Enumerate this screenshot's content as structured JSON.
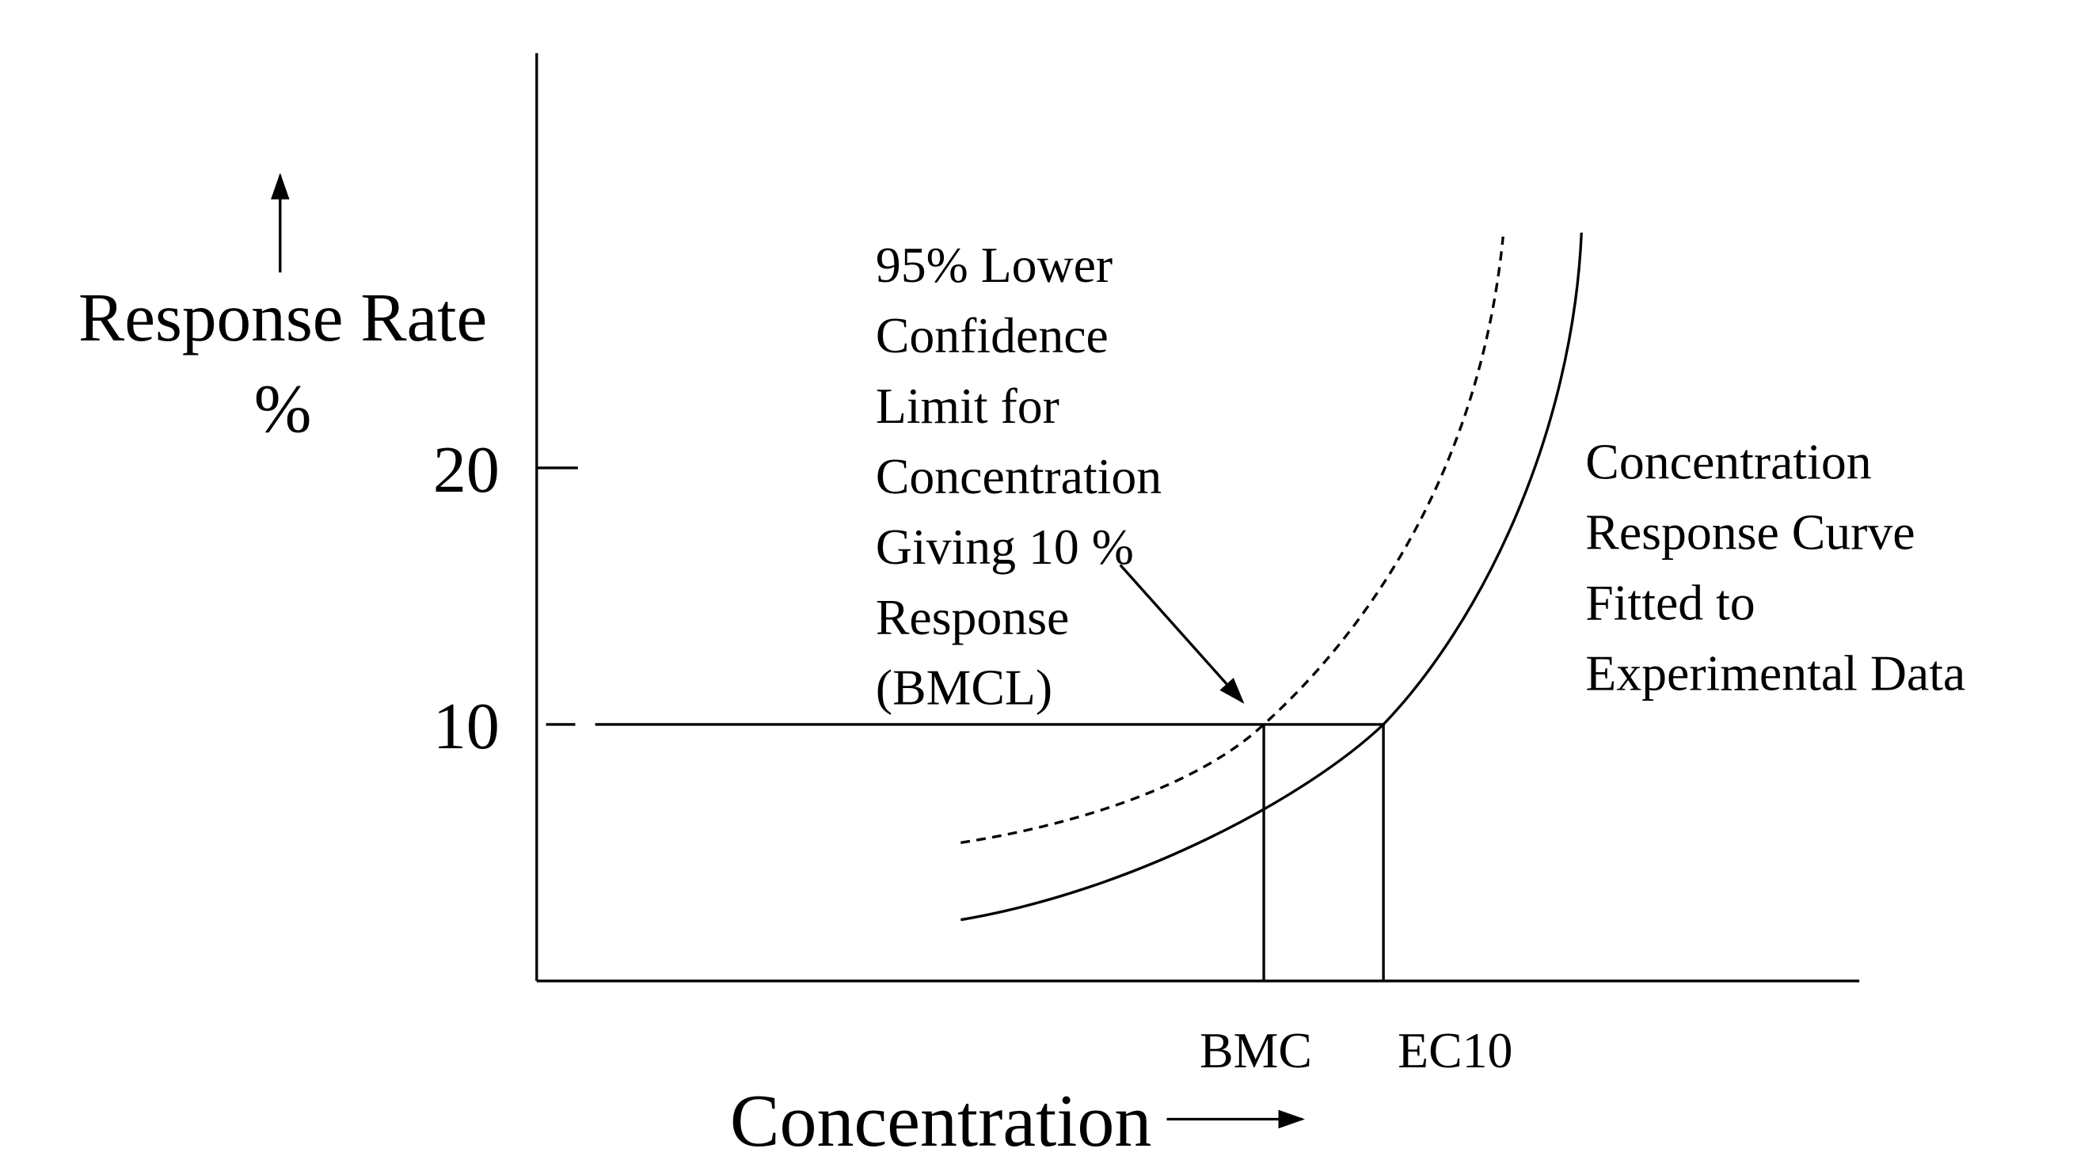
{
  "y_axis": {
    "label_lines": [
      "Response Rate",
      "%"
    ],
    "ticks": [
      20,
      10
    ]
  },
  "x_axis": {
    "label": "Concentration",
    "markers": [
      "BMC",
      "EC10"
    ]
  },
  "annotations": {
    "bmcl": [
      "95% Lower",
      "Confidence",
      "Limit for",
      "Concentration",
      "Giving 10 %",
      "Response",
      "(BMCL)"
    ],
    "curve": [
      "Concentration",
      "Response Curve",
      "Fitted to",
      "Experimental Data"
    ]
  }
}
